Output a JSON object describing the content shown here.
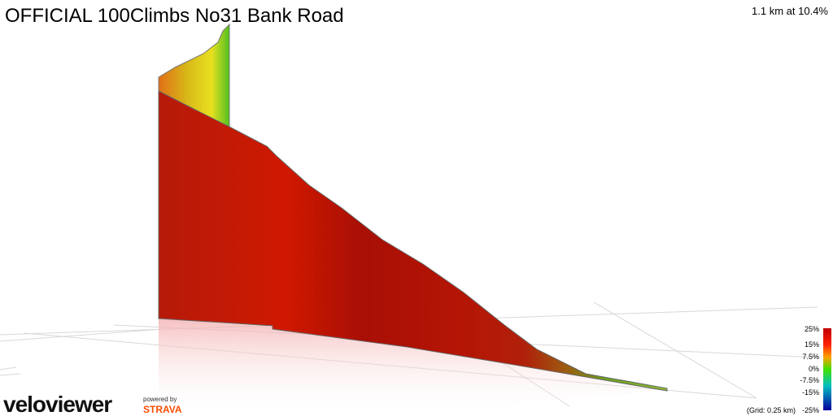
{
  "header": {
    "title": "OFFICIAL 100Climbs No31 Bank Road",
    "summary": "1.1 km at 10.4%"
  },
  "legend": {
    "labels": [
      "25%",
      "15%",
      "7.5%",
      "0%",
      "-7.5%",
      "-15%",
      "-25%"
    ],
    "grid_note": "(Grid: 0.25 km)"
  },
  "branding": {
    "logo": "veloviewer",
    "powered": "powered by",
    "strava": "STRAVA"
  }
}
